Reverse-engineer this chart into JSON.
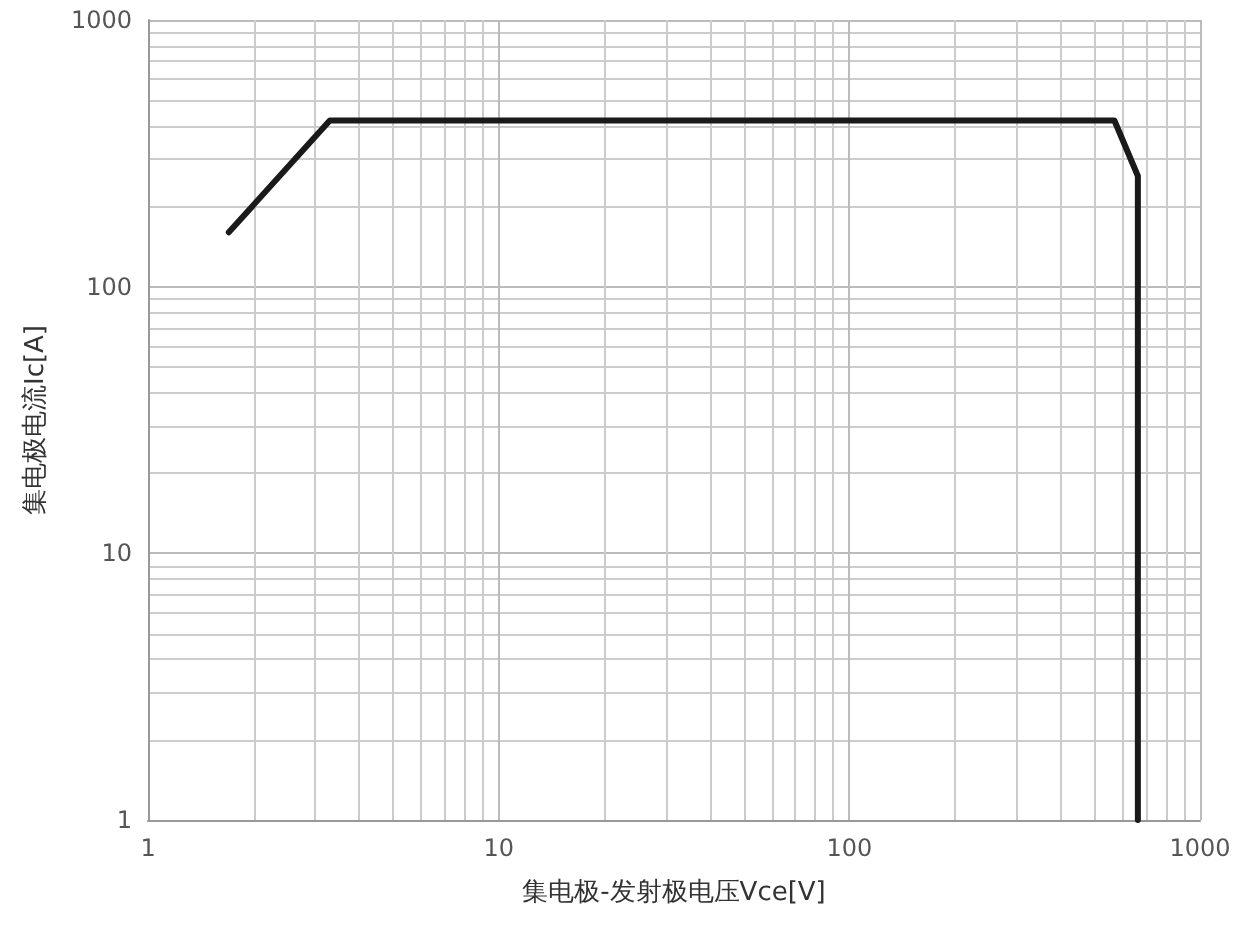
{
  "chart_data": {
    "type": "line",
    "xlabel": "集电极-发射极电压Vce[V]",
    "ylabel": "集电极电流Ic[A]",
    "x": [
      1.7,
      3.3,
      570,
      665,
      665
    ],
    "series": [
      {
        "color": "#1a1a1a",
        "values": [
          160,
          420,
          420,
          260,
          1
        ]
      }
    ],
    "xlim": [
      1,
      1000
    ],
    "ylim": [
      1,
      1000
    ],
    "xticks": [
      1,
      10,
      100,
      1000
    ],
    "yticks": [
      1,
      10,
      100,
      1000
    ],
    "log": "xy",
    "grid": true,
    "marker": "none",
    "line_style": "solid"
  }
}
